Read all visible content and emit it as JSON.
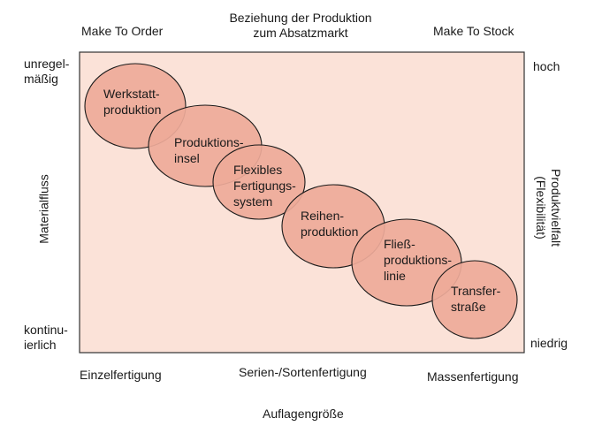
{
  "top": {
    "left": "Make To Order",
    "center_line1": "Beziehung der Produktion",
    "center_line2": "zum Absatzmarkt",
    "right": "Make To Stock"
  },
  "left_axis": {
    "top_line1": "unregel-",
    "top_line2": "mäßig",
    "title": "Materialfluss",
    "bottom_line1": "kontinu-",
    "bottom_line2": "ierlich"
  },
  "right_axis": {
    "top": "hoch",
    "title_line1": "Produktvielfalt",
    "title_line2": "(Flexibilität)",
    "bottom": "niedrig"
  },
  "bottom": {
    "left": "Einzelfertigung",
    "center": "Serien-/Sortenfertigung",
    "right": "Massenfertigung",
    "title": "Auflagengröße"
  },
  "colors": {
    "panel_fill": "#fbe2d8",
    "panel_border": "#333333",
    "ellipse_fill": "#eeaa99",
    "ellipse_stroke": "#1a1a1a"
  },
  "ellipses": [
    {
      "lines": [
        "Werkstatt-",
        "produktion"
      ]
    },
    {
      "lines": [
        "Produktions-",
        "insel"
      ]
    },
    {
      "lines": [
        "Flexibles",
        "Fertigungs-",
        "system"
      ]
    },
    {
      "lines": [
        "Reihen-",
        "produktion"
      ]
    },
    {
      "lines": [
        "Fließ-",
        "produktions-",
        "linie"
      ]
    },
    {
      "lines": [
        "Transfer-",
        "straße"
      ]
    }
  ]
}
